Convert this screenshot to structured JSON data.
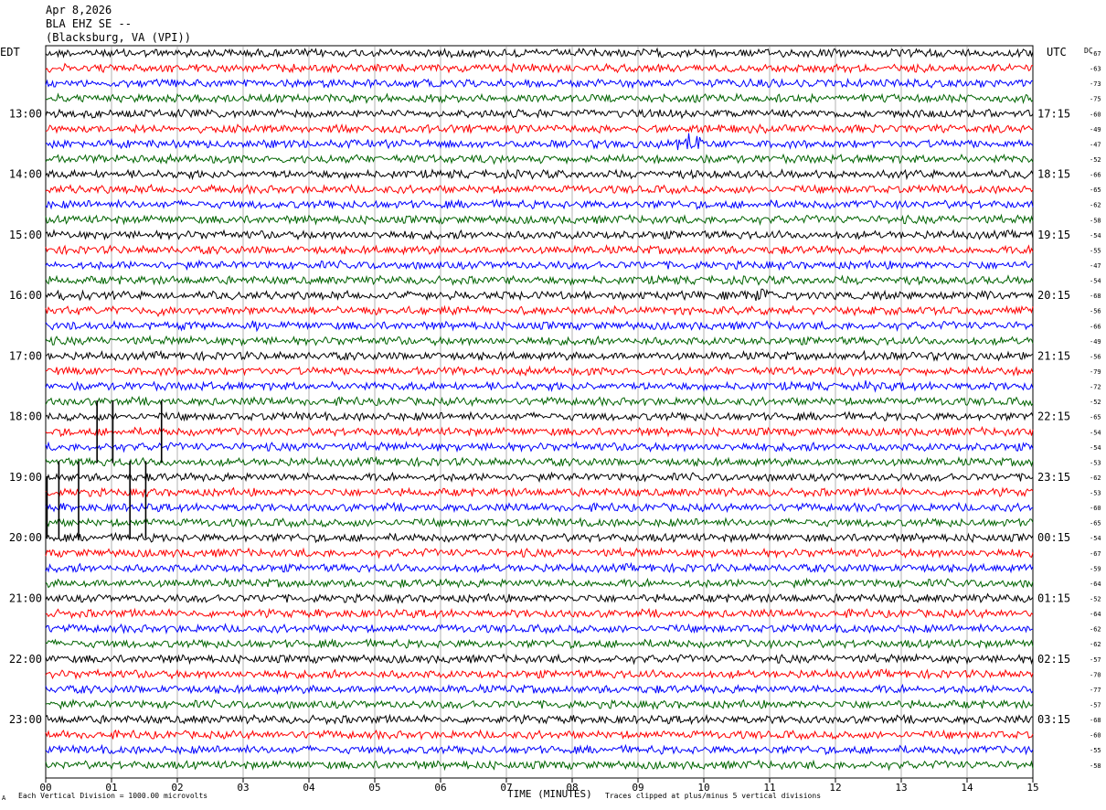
{
  "header": {
    "date": "Apr 8,2026",
    "station": "BLA EHZ SE --",
    "location": "(Blacksburg, VA (VPI))"
  },
  "left_zone": "EDT",
  "right_zone": "UTC",
  "dc_label": "DC",
  "footer": {
    "scale_note": "Each Vertical Division = 1000.00 microvolts",
    "axis_title": "TIME (MINUTES)",
    "clip_note": "Traces clipped at plus/minus 5 vertical divisions",
    "corner_mark": "A"
  },
  "chart_data": {
    "type": "line",
    "title": "BLA EHZ SE -- (Blacksburg, VA (VPI))",
    "xlabel": "TIME (MINUTES)",
    "xlim": [
      0,
      15
    ],
    "x_ticks": [
      "00",
      "01",
      "02",
      "03",
      "04",
      "05",
      "06",
      "07",
      "08",
      "09",
      "10",
      "11",
      "12",
      "13",
      "14",
      "15"
    ],
    "trace_colors": [
      "#000000",
      "#ff0000",
      "#0000ff",
      "#006400"
    ],
    "left_hour_labels": [
      "13:00",
      "14:00",
      "15:00",
      "16:00",
      "17:00",
      "18:00",
      "19:00",
      "20:00",
      "21:00",
      "22:00",
      "23:00"
    ],
    "right_hour_labels": [
      "17:15",
      "18:15",
      "19:15",
      "20:15",
      "21:15",
      "22:15",
      "23:15",
      "00:15",
      "01:15",
      "02:15",
      "03:15"
    ],
    "dc_offsets": [
      -67,
      -63,
      -73,
      -75,
      -60,
      -49,
      -47,
      -52,
      -66,
      -65,
      -62,
      -58,
      -54,
      -55,
      -47,
      -54,
      -68,
      -56,
      -66,
      -49,
      -56,
      -79,
      -72,
      -52,
      -65,
      -54,
      -54,
      -53,
      -62,
      -53,
      -60,
      -65,
      -54,
      -67,
      -59,
      -64,
      -52,
      -64,
      -62,
      -62,
      -57,
      -70,
      -77,
      -57,
      -68,
      -60,
      -55,
      -58
    ],
    "events": [
      {
        "trace": 6,
        "minute": 9.8,
        "amp": 3.2,
        "dur": 0.3
      },
      {
        "trace": 15,
        "minute": 7.0,
        "amp": 1.6,
        "dur": 0.25
      },
      {
        "trace": 16,
        "minute": 0.3,
        "amp": 1.3,
        "dur": 0.6
      },
      {
        "trace": 16,
        "minute": 10.9,
        "amp": 1.6,
        "dur": 0.4
      },
      {
        "trace": 17,
        "minute": 1.8,
        "amp": 1.1,
        "dur": 0.4
      },
      {
        "trace": 20,
        "minute": 12.5,
        "amp": 1.0,
        "dur": 0.3
      },
      {
        "trace": 22,
        "minute": 12.4,
        "amp": 1.0,
        "dur": 0.3
      },
      {
        "trace": 18,
        "minute": 3.2,
        "amp": 0.9,
        "dur": 0.3
      },
      {
        "trace": 9,
        "minute": 2.7,
        "amp": 0.8,
        "dur": 0.2
      }
    ],
    "spikes": [
      {
        "minute": 0.78,
        "from_trace": 23,
        "to_trace": 27
      },
      {
        "minute": 1.02,
        "from_trace": 23,
        "to_trace": 27
      },
      {
        "minute": 1.76,
        "from_trace": 23,
        "to_trace": 27
      },
      {
        "minute": 0.2,
        "from_trace": 27,
        "to_trace": 32
      },
      {
        "minute": 0.5,
        "from_trace": 27,
        "to_trace": 32
      },
      {
        "minute": 1.28,
        "from_trace": 27,
        "to_trace": 32
      },
      {
        "minute": 1.52,
        "from_trace": 27,
        "to_trace": 32
      },
      {
        "minute": 0.02,
        "from_trace": 28,
        "to_trace": 32
      }
    ]
  }
}
